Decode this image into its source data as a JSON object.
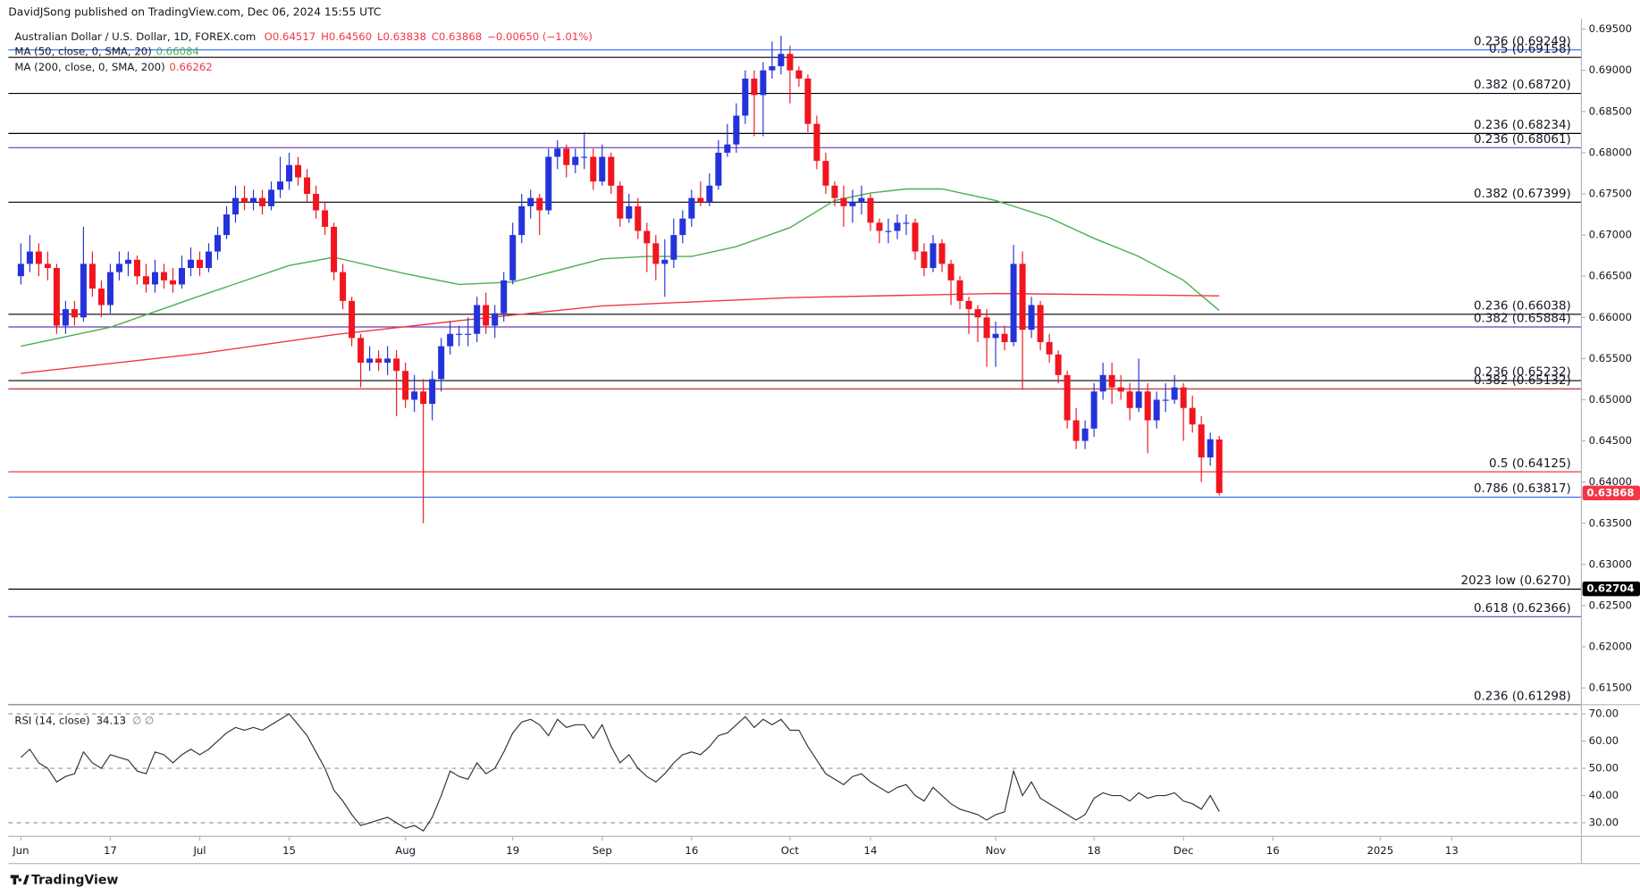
{
  "chart_data": {
    "type": "candlestick",
    "header": "DavidJSong published on TradingView.com, Dec 06, 2024 15:55 UTC",
    "title": "Australian Dollar / U.S. Dollar, 1D, FOREX.com",
    "legend_values": [
      "O0.64517",
      "H0.64560",
      "L0.63838",
      "C0.63868",
      "−0.00650 (−1.01%)"
    ],
    "legend_color": "#f23645",
    "up_color": "#2433d9",
    "down_color": "#f0151f",
    "candles": [
      [
        0.665,
        0.669,
        0.664,
        0.6665
      ],
      [
        0.6665,
        0.67,
        0.6655,
        0.668
      ],
      [
        0.668,
        0.669,
        0.665,
        0.6665
      ],
      [
        0.6665,
        0.668,
        0.6645,
        0.666
      ],
      [
        0.666,
        0.6665,
        0.658,
        0.659
      ],
      [
        0.659,
        0.662,
        0.658,
        0.661
      ],
      [
        0.661,
        0.662,
        0.659,
        0.66
      ],
      [
        0.66,
        0.671,
        0.6595,
        0.6665
      ],
      [
        0.6665,
        0.668,
        0.6625,
        0.6635
      ],
      [
        0.6635,
        0.6645,
        0.66,
        0.6615
      ],
      [
        0.6615,
        0.6665,
        0.6605,
        0.6655
      ],
      [
        0.6655,
        0.668,
        0.6645,
        0.6665
      ],
      [
        0.6665,
        0.668,
        0.665,
        0.667
      ],
      [
        0.667,
        0.6675,
        0.664,
        0.665
      ],
      [
        0.665,
        0.6665,
        0.663,
        0.664
      ],
      [
        0.664,
        0.667,
        0.663,
        0.6655
      ],
      [
        0.6655,
        0.6665,
        0.6635,
        0.6645
      ],
      [
        0.6645,
        0.666,
        0.663,
        0.664
      ],
      [
        0.664,
        0.6675,
        0.6635,
        0.666
      ],
      [
        0.666,
        0.6685,
        0.665,
        0.667
      ],
      [
        0.667,
        0.668,
        0.665,
        0.666
      ],
      [
        0.666,
        0.669,
        0.6655,
        0.668
      ],
      [
        0.668,
        0.671,
        0.667,
        0.67
      ],
      [
        0.67,
        0.6735,
        0.6695,
        0.6725
      ],
      [
        0.6725,
        0.676,
        0.6715,
        0.6745
      ],
      [
        0.6745,
        0.676,
        0.673,
        0.674
      ],
      [
        0.674,
        0.6755,
        0.673,
        0.6745
      ],
      [
        0.6745,
        0.6755,
        0.6725,
        0.6735
      ],
      [
        0.6735,
        0.6765,
        0.673,
        0.6755
      ],
      [
        0.6755,
        0.6795,
        0.6745,
        0.6765
      ],
      [
        0.6765,
        0.68,
        0.6755,
        0.6785
      ],
      [
        0.6785,
        0.6795,
        0.676,
        0.677
      ],
      [
        0.677,
        0.678,
        0.674,
        0.675
      ],
      [
        0.675,
        0.676,
        0.672,
        0.673
      ],
      [
        0.673,
        0.674,
        0.67,
        0.671
      ],
      [
        0.671,
        0.6715,
        0.6645,
        0.6655
      ],
      [
        0.6655,
        0.6665,
        0.661,
        0.662
      ],
      [
        0.662,
        0.6625,
        0.6565,
        0.6575
      ],
      [
        0.6575,
        0.658,
        0.6515,
        0.6545
      ],
      [
        0.6545,
        0.6565,
        0.6535,
        0.655
      ],
      [
        0.655,
        0.656,
        0.6535,
        0.6545
      ],
      [
        0.6545,
        0.6565,
        0.653,
        0.655
      ],
      [
        0.655,
        0.656,
        0.648,
        0.6535
      ],
      [
        0.6535,
        0.6545,
        0.649,
        0.65
      ],
      [
        0.65,
        0.653,
        0.6485,
        0.651
      ],
      [
        0.651,
        0.6525,
        0.635,
        0.6495
      ],
      [
        0.6495,
        0.6535,
        0.6475,
        0.6525
      ],
      [
        0.6525,
        0.6575,
        0.651,
        0.6565
      ],
      [
        0.6565,
        0.6595,
        0.6555,
        0.658
      ],
      [
        0.658,
        0.659,
        0.6565,
        0.658
      ],
      [
        0.658,
        0.66,
        0.6565,
        0.658
      ],
      [
        0.658,
        0.6625,
        0.657,
        0.6615
      ],
      [
        0.6615,
        0.663,
        0.658,
        0.659
      ],
      [
        0.659,
        0.6615,
        0.6575,
        0.6605
      ],
      [
        0.6605,
        0.6655,
        0.6595,
        0.6645
      ],
      [
        0.6645,
        0.6715,
        0.664,
        0.67
      ],
      [
        0.67,
        0.675,
        0.669,
        0.6735
      ],
      [
        0.6735,
        0.6755,
        0.672,
        0.6745
      ],
      [
        0.6745,
        0.675,
        0.67,
        0.673
      ],
      [
        0.673,
        0.6805,
        0.6725,
        0.6795
      ],
      [
        0.6795,
        0.6815,
        0.678,
        0.6805
      ],
      [
        0.6805,
        0.681,
        0.677,
        0.6785
      ],
      [
        0.6785,
        0.6805,
        0.6775,
        0.6795
      ],
      [
        0.6795,
        0.6825,
        0.678,
        0.6795
      ],
      [
        0.6795,
        0.6805,
        0.6755,
        0.6765
      ],
      [
        0.6765,
        0.681,
        0.676,
        0.6795
      ],
      [
        0.6795,
        0.68,
        0.675,
        0.676
      ],
      [
        0.676,
        0.6765,
        0.671,
        0.672
      ],
      [
        0.672,
        0.675,
        0.6715,
        0.6735
      ],
      [
        0.6735,
        0.6745,
        0.6695,
        0.6705
      ],
      [
        0.6705,
        0.6715,
        0.6655,
        0.669
      ],
      [
        0.669,
        0.67,
        0.6645,
        0.6665
      ],
      [
        0.6665,
        0.6695,
        0.6625,
        0.667
      ],
      [
        0.667,
        0.672,
        0.666,
        0.67
      ],
      [
        0.67,
        0.673,
        0.669,
        0.672
      ],
      [
        0.672,
        0.6755,
        0.671,
        0.6745
      ],
      [
        0.6745,
        0.6765,
        0.6735,
        0.674
      ],
      [
        0.674,
        0.6775,
        0.6735,
        0.676
      ],
      [
        0.676,
        0.6815,
        0.6755,
        0.68
      ],
      [
        0.68,
        0.6835,
        0.6795,
        0.681
      ],
      [
        0.681,
        0.686,
        0.68,
        0.6845
      ],
      [
        0.6845,
        0.69,
        0.6835,
        0.689
      ],
      [
        0.689,
        0.69,
        0.682,
        0.687
      ],
      [
        0.687,
        0.691,
        0.682,
        0.69
      ],
      [
        0.69,
        0.6935,
        0.689,
        0.6905
      ],
      [
        0.6905,
        0.6942,
        0.6895,
        0.692
      ],
      [
        0.692,
        0.693,
        0.686,
        0.69
      ],
      [
        0.69,
        0.6905,
        0.688,
        0.689
      ],
      [
        0.689,
        0.6895,
        0.6825,
        0.6835
      ],
      [
        0.6835,
        0.6845,
        0.678,
        0.679
      ],
      [
        0.679,
        0.68,
        0.675,
        0.676
      ],
      [
        0.676,
        0.6765,
        0.6735,
        0.6745
      ],
      [
        0.6745,
        0.676,
        0.671,
        0.6735
      ],
      [
        0.6735,
        0.6755,
        0.6715,
        0.674
      ],
      [
        0.674,
        0.676,
        0.6725,
        0.6745
      ],
      [
        0.6745,
        0.675,
        0.6705,
        0.6715
      ],
      [
        0.6715,
        0.672,
        0.669,
        0.6705
      ],
      [
        0.6705,
        0.672,
        0.669,
        0.6705
      ],
      [
        0.6705,
        0.6725,
        0.6695,
        0.6715
      ],
      [
        0.6715,
        0.6725,
        0.67,
        0.6715
      ],
      [
        0.6715,
        0.672,
        0.667,
        0.668
      ],
      [
        0.668,
        0.669,
        0.665,
        0.666
      ],
      [
        0.666,
        0.67,
        0.6655,
        0.669
      ],
      [
        0.669,
        0.6695,
        0.6655,
        0.6665
      ],
      [
        0.6665,
        0.667,
        0.6615,
        0.6645
      ],
      [
        0.6645,
        0.665,
        0.661,
        0.662
      ],
      [
        0.662,
        0.6625,
        0.658,
        0.661
      ],
      [
        0.661,
        0.6615,
        0.657,
        0.66
      ],
      [
        0.66,
        0.661,
        0.654,
        0.6575
      ],
      [
        0.6575,
        0.6595,
        0.654,
        0.658
      ],
      [
        0.658,
        0.659,
        0.656,
        0.657
      ],
      [
        0.657,
        0.6688,
        0.6565,
        0.6665
      ],
      [
        0.6665,
        0.668,
        0.6512,
        0.6585
      ],
      [
        0.6585,
        0.6625,
        0.6575,
        0.6615
      ],
      [
        0.6615,
        0.662,
        0.656,
        0.657
      ],
      [
        0.657,
        0.658,
        0.6545,
        0.6555
      ],
      [
        0.6555,
        0.656,
        0.652,
        0.653
      ],
      [
        0.653,
        0.6535,
        0.6465,
        0.6475
      ],
      [
        0.6475,
        0.649,
        0.644,
        0.645
      ],
      [
        0.645,
        0.6475,
        0.644,
        0.6465
      ],
      [
        0.6465,
        0.652,
        0.6455,
        0.651
      ],
      [
        0.651,
        0.6545,
        0.65,
        0.653
      ],
      [
        0.653,
        0.6545,
        0.6495,
        0.6515
      ],
      [
        0.6515,
        0.653,
        0.65,
        0.651
      ],
      [
        0.651,
        0.652,
        0.6475,
        0.649
      ],
      [
        0.649,
        0.655,
        0.6485,
        0.651
      ],
      [
        0.651,
        0.652,
        0.6435,
        0.6475
      ],
      [
        0.6475,
        0.651,
        0.6465,
        0.65
      ],
      [
        0.65,
        0.652,
        0.6485,
        0.65
      ],
      [
        0.65,
        0.653,
        0.6495,
        0.6515
      ],
      [
        0.6515,
        0.652,
        0.645,
        0.649
      ],
      [
        0.649,
        0.6505,
        0.646,
        0.647
      ],
      [
        0.647,
        0.648,
        0.64,
        0.643
      ],
      [
        0.643,
        0.646,
        0.642,
        0.6452
      ],
      [
        0.64517,
        0.6456,
        0.63838,
        0.63868
      ]
    ],
    "xlim": [
      -1.4,
      174.5
    ],
    "xticks": [
      {
        "value": 0,
        "label": "Jun"
      },
      {
        "value": 10,
        "label": "17"
      },
      {
        "value": 20,
        "label": "Jul"
      },
      {
        "value": 30,
        "label": "15"
      },
      {
        "value": 43,
        "label": "Aug"
      },
      {
        "value": 55,
        "label": "19"
      },
      {
        "value": 65,
        "label": "Sep"
      },
      {
        "value": 75,
        "label": "16"
      },
      {
        "value": 86,
        "label": "Oct"
      },
      {
        "value": 95,
        "label": "14"
      },
      {
        "value": 109,
        "label": "Nov"
      },
      {
        "value": 120,
        "label": "18"
      },
      {
        "value": 130,
        "label": "Dec"
      },
      {
        "value": 140,
        "label": "16"
      },
      {
        "value": 152,
        "label": "2025"
      },
      {
        "value": 160,
        "label": "13"
      }
    ],
    "ylim": [
      0.6131,
      0.696
    ],
    "yticks": [
      {
        "value": 0.615,
        "label": "0.61500"
      },
      {
        "value": 0.62,
        "label": "0.62000"
      },
      {
        "value": 0.625,
        "label": "0.62500"
      },
      {
        "value": 0.63,
        "label": "0.63000"
      },
      {
        "value": 0.635,
        "label": "0.63500"
      },
      {
        "value": 0.64,
        "label": "0.64000"
      },
      {
        "value": 0.645,
        "label": "0.64500"
      },
      {
        "value": 0.65,
        "label": "0.65000"
      },
      {
        "value": 0.655,
        "label": "0.65500"
      },
      {
        "value": 0.66,
        "label": "0.66000"
      },
      {
        "value": 0.665,
        "label": "0.66500"
      },
      {
        "value": 0.67,
        "label": "0.67000"
      },
      {
        "value": 0.675,
        "label": "0.67500"
      },
      {
        "value": 0.68,
        "label": "0.68000"
      },
      {
        "value": 0.685,
        "label": "0.68500"
      },
      {
        "value": 0.69,
        "label": "0.69000"
      },
      {
        "value": 0.695,
        "label": "0.69500"
      }
    ],
    "ma": [
      {
        "name": "MA (50, close, 0, SMA, 20)",
        "color": "#4caf50",
        "x": [
          0,
          10,
          20,
          30,
          35,
          43,
          49,
          55,
          65,
          70,
          75,
          80,
          86,
          91,
          95,
          99,
          103,
          109,
          115,
          120,
          125,
          130,
          134
        ],
        "values": [
          0.6565,
          0.6588,
          0.6626,
          0.6663,
          0.6673,
          0.6653,
          0.664,
          0.6643,
          0.6671,
          0.6674,
          0.6674,
          0.6686,
          0.6709,
          0.6742,
          0.6751,
          0.6756,
          0.6756,
          0.6742,
          0.6721,
          0.6696,
          0.6674,
          0.6645,
          0.66084
        ]
      },
      {
        "name": "MA (200, close, 0, SMA, 200)",
        "color": "#f23645",
        "x": [
          0,
          20,
          35,
          49,
          65,
          86,
          109,
          134
        ],
        "values": [
          0.6532,
          0.6556,
          0.6579,
          0.6596,
          0.6614,
          0.6624,
          0.6629,
          0.66262
        ]
      }
    ],
    "levels": [
      {
        "label": "0.236 (0.69249)",
        "value": 0.69249,
        "color": "#2962ff"
      },
      {
        "label": "0.5 (0.69158)",
        "value": 0.69158,
        "color": "#000000"
      },
      {
        "label": "0.382 (0.68720)",
        "value": 0.6872,
        "color": "#000000"
      },
      {
        "label": "0.236 (0.68234)",
        "value": 0.68234,
        "color": "#000000"
      },
      {
        "label": "0.236 (0.68061)",
        "value": 0.68061,
        "color": "#673ab7"
      },
      {
        "label": "0.382 (0.67399)",
        "value": 0.67399,
        "color": "#000000"
      },
      {
        "label": "0.236 (0.66038)",
        "value": 0.66038,
        "color": "#000000"
      },
      {
        "label": "0.382 (0.65884)",
        "value": 0.65884,
        "color": "#673ab7"
      },
      {
        "label": "0.236 (0.65232)",
        "value": 0.65232,
        "color": "#000000"
      },
      {
        "label": "0.382 (0.65132)",
        "value": 0.65132,
        "color": "#b71c1c"
      },
      {
        "label": "0.5 (0.64125)",
        "value": 0.64125,
        "color": "#f23645"
      },
      {
        "label": "0.786 (0.63817)",
        "value": 0.63817,
        "color": "#2962ff"
      },
      {
        "label": "2023 low (0.6270)",
        "value": 0.627,
        "color": "#000000"
      },
      {
        "label": "0.618 (0.62366)",
        "value": 0.62366,
        "color": "#673ab7"
      },
      {
        "label": "0.236 (0.61298)",
        "value": 0.61298,
        "color": "#000000"
      }
    ],
    "price_tags": [
      {
        "value": 0.63868,
        "color": "#f23645"
      },
      {
        "value": 0.62704,
        "color": "#000000"
      }
    ],
    "rsi": {
      "name": "RSI (14, close)",
      "extra": "∅ ∅",
      "color": "#333333",
      "ylim": [
        25,
        73
      ],
      "yticks": [
        {
          "value": 30,
          "label": "30.00"
        },
        {
          "value": 40,
          "label": "40.00"
        },
        {
          "value": 50,
          "label": "50.00"
        },
        {
          "value": 60,
          "label": "60.00"
        },
        {
          "value": 70,
          "label": "70.00"
        }
      ],
      "bands": [
        30,
        50,
        70
      ],
      "values": [
        54,
        57,
        52,
        50,
        45,
        47,
        48,
        56,
        52,
        50,
        55,
        54,
        53,
        49,
        48,
        56,
        55,
        52,
        55,
        57,
        55,
        57,
        60,
        63,
        65,
        64,
        65,
        64,
        66,
        68,
        70,
        66,
        62,
        56,
        50,
        42,
        38,
        33,
        29,
        30,
        31,
        32,
        30,
        28,
        29,
        27,
        32,
        40,
        49,
        47,
        46,
        52,
        48,
        50,
        56,
        63,
        67,
        68,
        66,
        62,
        68,
        65,
        66,
        66,
        61,
        66,
        58,
        52,
        55,
        50,
        47,
        45,
        48,
        52,
        55,
        56,
        55,
        58,
        62,
        63,
        66,
        69,
        65,
        68,
        66,
        68,
        64,
        64,
        58,
        53,
        48,
        46,
        44,
        47,
        48,
        45,
        43,
        41,
        43,
        44,
        40,
        38,
        43,
        40,
        37,
        35,
        34,
        33,
        31,
        33,
        34,
        49,
        40,
        45,
        39,
        37,
        35,
        33,
        31,
        33,
        39,
        41,
        40,
        40,
        38,
        41,
        39,
        40,
        40,
        41,
        38,
        37,
        35,
        40,
        34.13
      ]
    },
    "footer": "TradingView"
  }
}
